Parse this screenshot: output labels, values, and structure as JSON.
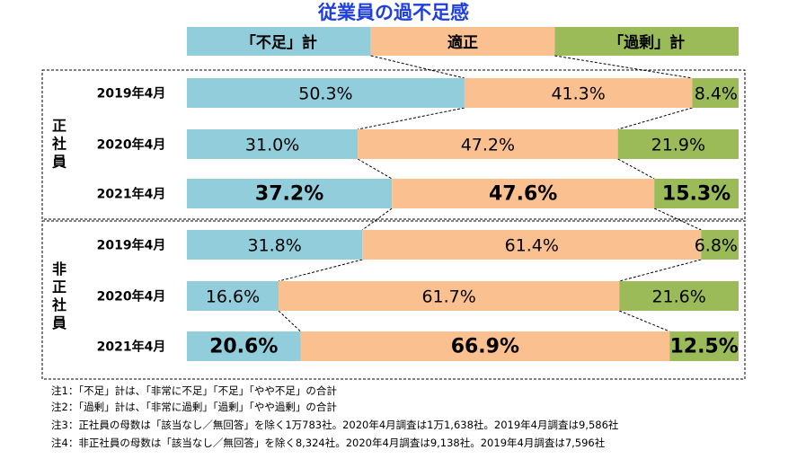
{
  "chart_data": {
    "type": "bar",
    "orientation": "horizontal-stacked-100",
    "title": "従業員の過不足感",
    "legend": [
      "「不足」計",
      "適正",
      "「過剰」計"
    ],
    "colors": {
      "shortage": "#92cddc",
      "appropriate": "#fac090",
      "surplus": "#9bbb59",
      "title": "#1f3fdc"
    },
    "groups": [
      {
        "name": "正社員",
        "rows": [
          {
            "label": "2019年4月",
            "values": [
              50.3,
              41.3,
              8.4
            ],
            "labels": [
              "50.3%",
              "41.3%",
              "8.4%"
            ],
            "emphasis": false
          },
          {
            "label": "2020年4月",
            "values": [
              31.0,
              47.2,
              21.9
            ],
            "labels": [
              "31.0%",
              "47.2%",
              "21.9%"
            ],
            "emphasis": false
          },
          {
            "label": "2021年4月",
            "values": [
              37.2,
              47.6,
              15.3
            ],
            "labels": [
              "37.2%",
              "47.6%",
              "15.3%"
            ],
            "emphasis": true
          }
        ]
      },
      {
        "name": "非正社員",
        "rows": [
          {
            "label": "2019年4月",
            "values": [
              31.8,
              61.4,
              6.8
            ],
            "labels": [
              "31.8%",
              "61.4%",
              "6.8%"
            ],
            "emphasis": false
          },
          {
            "label": "2020年4月",
            "values": [
              16.6,
              61.7,
              21.6
            ],
            "labels": [
              "16.6%",
              "61.7%",
              "21.6%"
            ],
            "emphasis": false
          },
          {
            "label": "2021年4月",
            "values": [
              20.6,
              66.9,
              12.5
            ],
            "labels": [
              "20.6%",
              "66.9%",
              "12.5%"
            ],
            "emphasis": true
          }
        ]
      }
    ],
    "notes": [
      "注1：「不足」計は、「非常に不足」「不足」「やや不足」の合計",
      "注2：「過剰」計は、「非常に過剰」「過剰」「やや過剰」の合計",
      "注3：正社員の母数は「該当なし／無回答」を除く1万783社。2020年4月調査は1万1,638社。2019年4月調査は9,586社",
      "注4：非正社員の母数は「該当なし／無回答」を除く8,324社。2020年4月調査は9,138社。2019年4月調査は7,596社"
    ]
  }
}
